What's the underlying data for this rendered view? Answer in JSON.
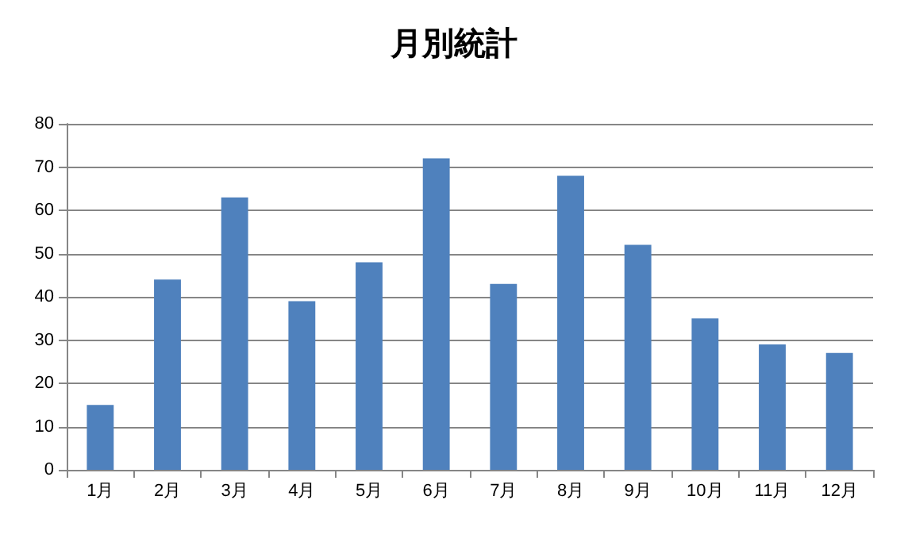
{
  "chart_data": {
    "type": "bar",
    "title": "月別統計",
    "categories": [
      "1月",
      "2月",
      "3月",
      "4月",
      "5月",
      "6月",
      "7月",
      "8月",
      "9月",
      "10月",
      "11月",
      "12月"
    ],
    "values": [
      15,
      44,
      63,
      39,
      48,
      72,
      43,
      68,
      52,
      35,
      29,
      27
    ],
    "color": "#4f81bd",
    "ylim": [
      0,
      80
    ],
    "yticks": [
      0,
      10,
      20,
      30,
      40,
      50,
      60,
      70,
      80
    ],
    "grid": "y"
  }
}
